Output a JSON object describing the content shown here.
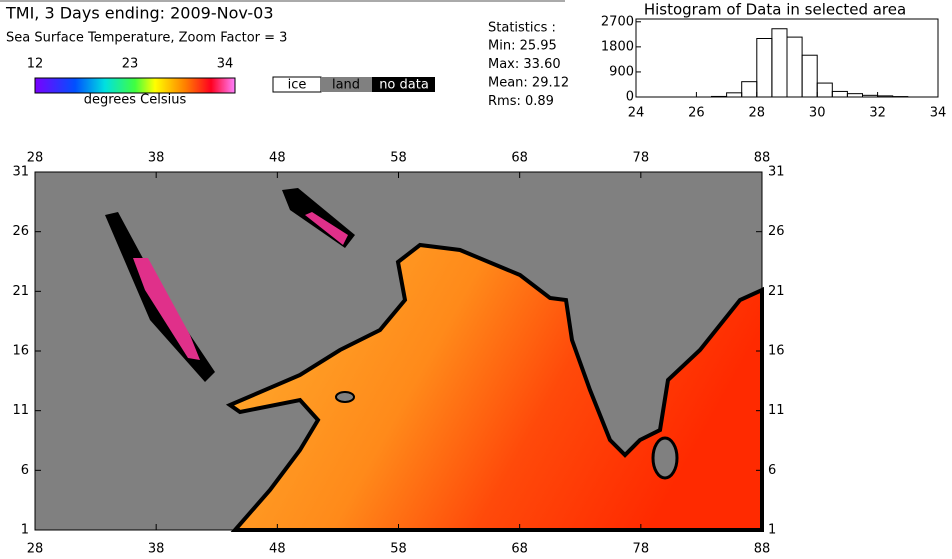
{
  "header": {
    "title": "TMI, 3 Days ending: 2009-Nov-03",
    "subtitle": "Sea Surface Temperature,  Zoom Factor = 3"
  },
  "colorbar": {
    "ticks": [
      12,
      23,
      34
    ],
    "label": "degrees Celsius"
  },
  "legend": [
    "ice",
    "land",
    "no data"
  ],
  "statistics": {
    "title": "Statistics :",
    "lines": [
      "Min: 25.95",
      "Max: 33.60",
      "Mean: 29.12",
      "Rms:   0.89"
    ]
  },
  "chart_data": {
    "type": "histogram",
    "title": "Histogram of Data in selected area",
    "bins": [
      26.5,
      27,
      27.5,
      28,
      28.5,
      29,
      29.5,
      30,
      30.5,
      31,
      31.5,
      32,
      32.5,
      33
    ],
    "values": [
      20,
      150,
      550,
      2100,
      2450,
      2150,
      1500,
      500,
      200,
      120,
      60,
      40,
      15
    ],
    "xlim": [
      24,
      34
    ],
    "xticks": [
      24,
      26,
      28,
      30,
      32,
      34
    ],
    "ylim": [
      0,
      2800
    ],
    "yticks": [
      0,
      900,
      1800,
      2700
    ]
  },
  "map": {
    "lon_ticks": [
      28,
      38,
      48,
      58,
      68,
      78,
      88
    ],
    "lat_ticks": [
      31,
      26,
      21,
      16,
      11,
      6,
      1
    ]
  }
}
